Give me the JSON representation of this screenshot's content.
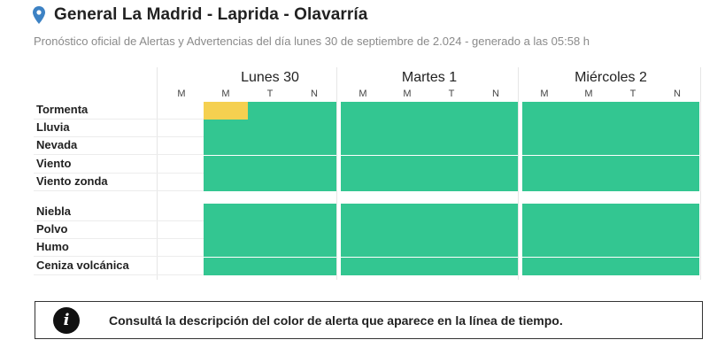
{
  "header": {
    "title": "General La Madrid - Laprida - Olavarría",
    "subtitle": "Pronóstico oficial de Alertas y Advertencias del día lunes 30 de septiembre de 2.024 - generado a las 05:58 h",
    "pin_color": "#3d82c4"
  },
  "days": [
    {
      "label": "Lunes 30",
      "periods": [
        "M",
        "M",
        "T",
        "N"
      ]
    },
    {
      "label": "Martes 1",
      "periods": [
        "M",
        "M",
        "T",
        "N"
      ]
    },
    {
      "label": "Miércoles 2",
      "periods": [
        "M",
        "M",
        "T",
        "N"
      ]
    }
  ],
  "legend_colors": {
    "green": "#33c691",
    "yellow": "#f5d050"
  },
  "group1": [
    {
      "label": "Tormenta",
      "lunes": [
        "yellow",
        "green",
        "green"
      ],
      "martes": "green",
      "miercoles": "green"
    },
    {
      "label": "Lluvia",
      "lunes": [
        "green",
        "green",
        "green"
      ],
      "martes": "green",
      "miercoles": "green"
    },
    {
      "label": "Nevada",
      "lunes": [
        "green",
        "green",
        "green"
      ],
      "martes": "green",
      "miercoles": "green"
    },
    {
      "label": "Viento",
      "lunes": [
        "green",
        "green",
        "green"
      ],
      "martes": "green",
      "miercoles": "green"
    },
    {
      "label": "Viento zonda",
      "lunes": [
        "green",
        "green",
        "green"
      ],
      "martes": "green",
      "miercoles": "green"
    }
  ],
  "group2": [
    {
      "label": "Niebla",
      "lunes": [
        "green",
        "green",
        "green"
      ],
      "martes": "green",
      "miercoles": "green"
    },
    {
      "label": "Polvo",
      "lunes": [
        "green",
        "green",
        "green"
      ],
      "martes": "green",
      "miercoles": "green"
    },
    {
      "label": "Humo",
      "lunes": [
        "green",
        "green",
        "green"
      ],
      "martes": "green",
      "miercoles": "green"
    },
    {
      "label": "Ceniza volcánica",
      "lunes": [
        "green",
        "green",
        "green"
      ],
      "martes": "green",
      "miercoles": "green"
    }
  ],
  "info": {
    "icon": "info-icon",
    "glyph": "i",
    "text": "Consultá la descripción del color de alerta que aparece en la línea de tiempo."
  }
}
